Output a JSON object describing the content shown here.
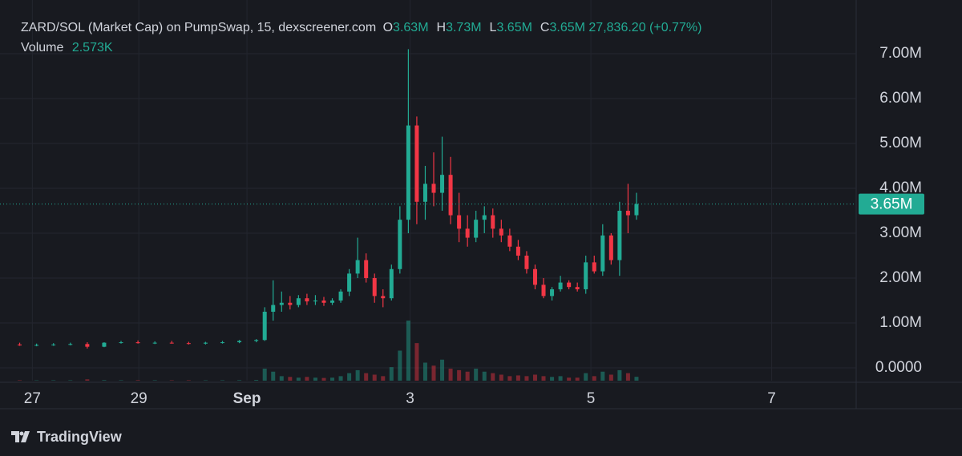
{
  "chart_data": {
    "type": "candlestick",
    "title": "ZARD/SOL (Market Cap) on PumpSwap, 15, dexscreener.com",
    "ohlc_readout": [
      {
        "key": "O",
        "value": "3.63M"
      },
      {
        "key": "H",
        "value": "3.73M"
      },
      {
        "key": "L",
        "value": "3.65M"
      },
      {
        "key": "C",
        "value": "3.65M"
      }
    ],
    "change": "27,836.20 (+0.77%)",
    "volume_title": "Volume",
    "volume_readout": "2.573K",
    "brand": "TradingView",
    "up_color": "#22ab94",
    "down_color": "#f23645",
    "price_line": {
      "value": 3650000,
      "label": "3.65M"
    },
    "xlim": [
      0,
      100
    ],
    "xticks": [
      {
        "value": 2.5,
        "label": "27"
      },
      {
        "value": 15.1,
        "label": "29"
      },
      {
        "value": 27.9,
        "label": "Sep"
      },
      {
        "value": 47.2,
        "label": "3"
      },
      {
        "value": 68.6,
        "label": "5"
      },
      {
        "value": 90,
        "label": "7"
      }
    ],
    "ylim": [
      -286000,
      7660000
    ],
    "yticks": [
      {
        "value": 0,
        "label": "0.0000"
      },
      {
        "value": 1000000,
        "label": "1.00M"
      },
      {
        "value": 2000000,
        "label": "2.00M"
      },
      {
        "value": 3000000,
        "label": "3.00M"
      },
      {
        "value": 4000000,
        "label": "4.00M"
      },
      {
        "value": 5000000,
        "label": "5.00M"
      },
      {
        "value": 6000000,
        "label": "6.00M"
      },
      {
        "value": 7000000,
        "label": "7.00M"
      }
    ],
    "grid": true,
    "x": [
      1,
      3,
      5,
      7,
      9,
      11,
      13,
      15,
      17,
      19,
      21,
      23,
      25,
      27,
      29,
      30,
      31,
      32,
      33,
      34,
      35,
      36,
      37,
      38,
      39,
      40,
      41,
      42,
      43,
      44,
      45,
      46,
      47,
      48,
      49,
      50,
      51,
      52,
      53,
      54,
      55,
      56,
      57,
      58,
      59,
      60,
      61,
      62,
      63,
      64,
      65,
      66,
      67,
      68,
      69,
      70,
      71,
      72,
      73,
      74
    ],
    "open": [
      520000,
      500000,
      510000,
      520000,
      530000,
      470000,
      560000,
      570000,
      550000,
      560000,
      550000,
      540000,
      560000,
      570000,
      600000,
      620000,
      1250000,
      1400000,
      1450000,
      1400000,
      1550000,
      1480000,
      1500000,
      1450000,
      1500000,
      1700000,
      2100000,
      2400000,
      2000000,
      1600000,
      1550000,
      2200000,
      3300000,
      5400000,
      3700000,
      4100000,
      3900000,
      4300000,
      3400000,
      3100000,
      2900000,
      3300000,
      3400000,
      3100000,
      2950000,
      2700000,
      2500000,
      2200000,
      1850000,
      1600000,
      1750000,
      1900000,
      1800000,
      1750000,
      2350000,
      2150000,
      2950000,
      2400000,
      3500000,
      3400000
    ],
    "high": [
      560000,
      540000,
      550000,
      560000,
      570000,
      570000,
      600000,
      610000,
      590000,
      600000,
      580000,
      580000,
      600000,
      620000,
      640000,
      1350000,
      1950000,
      1700000,
      1600000,
      1620000,
      1650000,
      1620000,
      1580000,
      1550000,
      1750000,
      2200000,
      2900000,
      2550000,
      2100000,
      1750000,
      2300000,
      3600000,
      7100000,
      5600000,
      4500000,
      4800000,
      5150000,
      4700000,
      3900000,
      3400000,
      3500000,
      3600000,
      3550000,
      3300000,
      3100000,
      2850000,
      2600000,
      2300000,
      2000000,
      1800000,
      2050000,
      1950000,
      1900000,
      2500000,
      2500000,
      3200000,
      3000000,
      3700000,
      4100000,
      3900000
    ],
    "low": [
      490000,
      480000,
      490000,
      500000,
      430000,
      460000,
      540000,
      540000,
      530000,
      540000,
      520000,
      520000,
      540000,
      550000,
      570000,
      600000,
      1050000,
      1250000,
      1300000,
      1350000,
      1400000,
      1400000,
      1380000,
      1400000,
      1450000,
      1600000,
      2000000,
      1900000,
      1450000,
      1350000,
      1500000,
      2100000,
      3000000,
      3200000,
      3300000,
      3600000,
      3500000,
      3200000,
      2800000,
      2700000,
      2800000,
      3000000,
      2900000,
      2800000,
      2600000,
      2400000,
      2100000,
      1750000,
      1550000,
      1500000,
      1700000,
      1750000,
      1700000,
      1650000,
      2100000,
      2050000,
      2300000,
      2050000,
      3000000,
      3300000
    ],
    "close": [
      500000,
      510000,
      520000,
      530000,
      470000,
      560000,
      570000,
      550000,
      560000,
      550000,
      540000,
      560000,
      570000,
      600000,
      620000,
      1250000,
      1400000,
      1450000,
      1400000,
      1550000,
      1480000,
      1500000,
      1450000,
      1500000,
      1700000,
      2100000,
      2400000,
      2000000,
      1600000,
      1550000,
      2200000,
      3300000,
      5400000,
      3700000,
      4100000,
      3900000,
      4300000,
      3400000,
      3100000,
      2900000,
      3300000,
      3400000,
      3100000,
      2950000,
      2700000,
      2500000,
      2200000,
      1850000,
      1600000,
      1750000,
      1900000,
      1800000,
      1750000,
      2350000,
      2150000,
      2950000,
      2400000,
      3500000,
      3400000,
      3650000
    ],
    "volume": [
      300,
      250,
      300,
      280,
      900,
      400,
      300,
      350,
      300,
      280,
      300,
      260,
      300,
      350,
      500,
      8000,
      6000,
      3000,
      2500,
      2000,
      2500,
      2000,
      1800,
      2000,
      3000,
      5000,
      7000,
      5000,
      4000,
      3000,
      9000,
      20000,
      40000,
      25000,
      12000,
      10000,
      14000,
      8000,
      7000,
      6000,
      8000,
      6000,
      5000,
      4000,
      3000,
      3500,
      3000,
      4000,
      3000,
      2500,
      3000,
      2000,
      2000,
      5000,
      3000,
      6000,
      4000,
      7000,
      5000,
      2573
    ]
  }
}
